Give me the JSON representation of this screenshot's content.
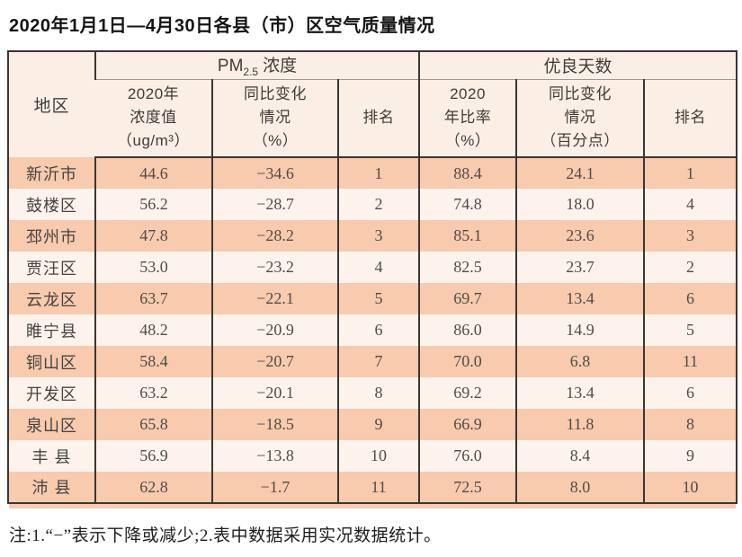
{
  "title": "2020年1月1日—4月30日各县（市）区空气质量情况",
  "table": {
    "region_header": "地区",
    "pm_group": {
      "prefix": "PM",
      "sub": "2.5",
      "suffix": "浓度"
    },
    "good_group": "优良天数",
    "sub_headers": [
      "2020年\n浓度值\n（ug/m³）",
      "同比变化\n情况\n（%）",
      "排名",
      "2020\n年比率\n（%）",
      "同比变化\n情况\n（百分点）",
      "排名"
    ],
    "rows": [
      {
        "region": "新沂市",
        "pm_value": "44.6",
        "pm_change": "−34.6",
        "pm_rank": "1",
        "good_rate": "88.4",
        "good_change": "24.1",
        "good_rank": "1"
      },
      {
        "region": "鼓楼区",
        "pm_value": "56.2",
        "pm_change": "−28.7",
        "pm_rank": "2",
        "good_rate": "74.8",
        "good_change": "18.0",
        "good_rank": "4"
      },
      {
        "region": "邳州市",
        "pm_value": "47.8",
        "pm_change": "−28.2",
        "pm_rank": "3",
        "good_rate": "85.1",
        "good_change": "23.6",
        "good_rank": "3"
      },
      {
        "region": "贾汪区",
        "pm_value": "53.0",
        "pm_change": "−23.2",
        "pm_rank": "4",
        "good_rate": "82.5",
        "good_change": "23.7",
        "good_rank": "2"
      },
      {
        "region": "云龙区",
        "pm_value": "63.7",
        "pm_change": "−22.1",
        "pm_rank": "5",
        "good_rate": "69.7",
        "good_change": "13.4",
        "good_rank": "6"
      },
      {
        "region": "睢宁县",
        "pm_value": "48.2",
        "pm_change": "−20.9",
        "pm_rank": "6",
        "good_rate": "86.0",
        "good_change": "14.9",
        "good_rank": "5"
      },
      {
        "region": "铜山区",
        "pm_value": "58.4",
        "pm_change": "−20.7",
        "pm_rank": "7",
        "good_rate": "70.0",
        "good_change": "6.8",
        "good_rank": "11"
      },
      {
        "region": "开发区",
        "pm_value": "63.2",
        "pm_change": "−20.1",
        "pm_rank": "8",
        "good_rate": "69.2",
        "good_change": "13.4",
        "good_rank": "6"
      },
      {
        "region": "泉山区",
        "pm_value": "65.8",
        "pm_change": "−18.5",
        "pm_rank": "9",
        "good_rate": "66.9",
        "good_change": "11.8",
        "good_rank": "8"
      },
      {
        "region": "丰 县",
        "pm_value": "56.9",
        "pm_change": "−13.8",
        "pm_rank": "10",
        "good_rate": "76.0",
        "good_change": "8.4",
        "good_rank": "9"
      },
      {
        "region": "沛 县",
        "pm_value": "62.8",
        "pm_change": "−1.7",
        "pm_rank": "11",
        "good_rate": "72.5",
        "good_change": "8.0",
        "good_rank": "10"
      }
    ]
  },
  "note": "注:1.“−”表示下降或减少;2.表中数据采用实况数据统计。",
  "colors": {
    "row_salmon": "#f8caae",
    "row_light": "#fdf3ec",
    "header_bg": "#fbefe5",
    "border_dark": "#3c3533",
    "shadow_peach": "#f7cbb1"
  }
}
